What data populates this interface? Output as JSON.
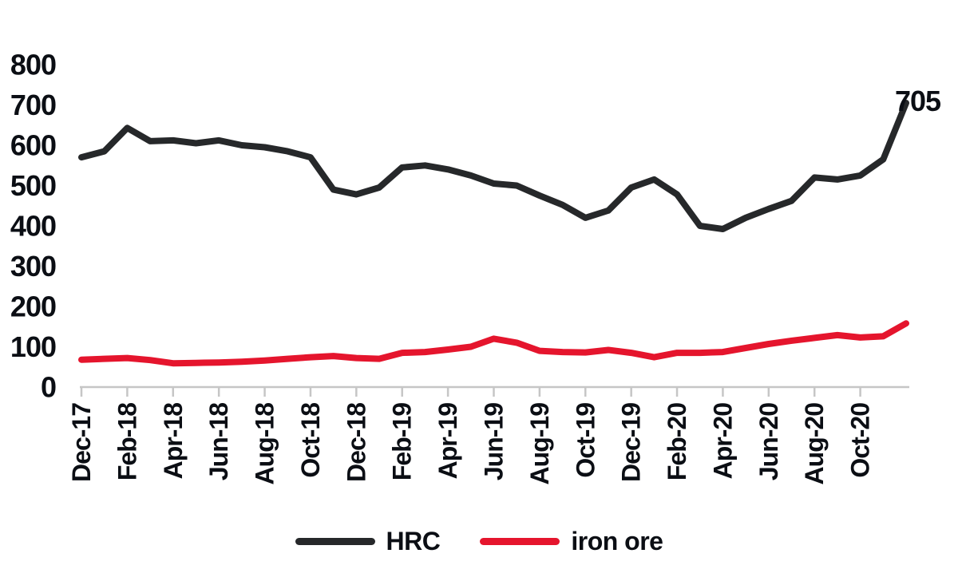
{
  "chart_data": {
    "type": "line",
    "title": "",
    "x": [
      "Dec-17",
      "Jan-18",
      "Feb-18",
      "Mar-18",
      "Apr-18",
      "May-18",
      "Jun-18",
      "Jul-18",
      "Aug-18",
      "Sep-18",
      "Oct-18",
      "Nov-18",
      "Dec-18",
      "Jan-19",
      "Feb-19",
      "Mar-19",
      "Apr-19",
      "May-19",
      "Jun-19",
      "Jul-19",
      "Aug-19",
      "Sep-19",
      "Oct-19",
      "Nov-19",
      "Dec-19",
      "Jan-20",
      "Feb-20",
      "Mar-20",
      "Apr-20",
      "May-20",
      "Jun-20",
      "Jul-20",
      "Aug-20",
      "Sep-20",
      "Oct-20",
      "Nov-20",
      "Dec-20"
    ],
    "x_tick_labels": [
      "Dec-17",
      "Feb-18",
      "Apr-18",
      "Jun-18",
      "Aug-18",
      "Oct-18",
      "Dec-18",
      "Feb-19",
      "Apr-19",
      "Jun-19",
      "Aug-19",
      "Oct-19",
      "Dec-19",
      "Feb-20",
      "Apr-20",
      "Jun-20",
      "Aug-20",
      "Oct-20"
    ],
    "y_ticks": [
      0,
      100,
      200,
      300,
      400,
      500,
      600,
      700,
      800
    ],
    "ylim": [
      0,
      800
    ],
    "grid": false,
    "legend_position": "bottom",
    "series": [
      {
        "name": "HRC",
        "color": "#26282a",
        "values": [
          570,
          585,
          643,
          610,
          612,
          605,
          612,
          600,
          595,
          585,
          570,
          490,
          478,
          495,
          545,
          550,
          540,
          525,
          505,
          500,
          475,
          452,
          420,
          438,
          495,
          515,
          478,
          400,
          392,
          420,
          442,
          462,
          520,
          515,
          525,
          565,
          705
        ]
      },
      {
        "name": "iron ore",
        "color": "#e5152d",
        "values": [
          68,
          70,
          72,
          67,
          59,
          60,
          61,
          63,
          66,
          70,
          74,
          77,
          72,
          70,
          85,
          87,
          93,
          100,
          120,
          110,
          90,
          87,
          86,
          92,
          85,
          74,
          85,
          85,
          87,
          97,
          107,
          115,
          122,
          129,
          123,
          126,
          158
        ]
      }
    ],
    "annotation": {
      "text": "705",
      "series": "HRC",
      "x": "Dec-20",
      "value": 705
    },
    "axis_color": "#c6c6c6",
    "text_color": "#0b0e14"
  }
}
